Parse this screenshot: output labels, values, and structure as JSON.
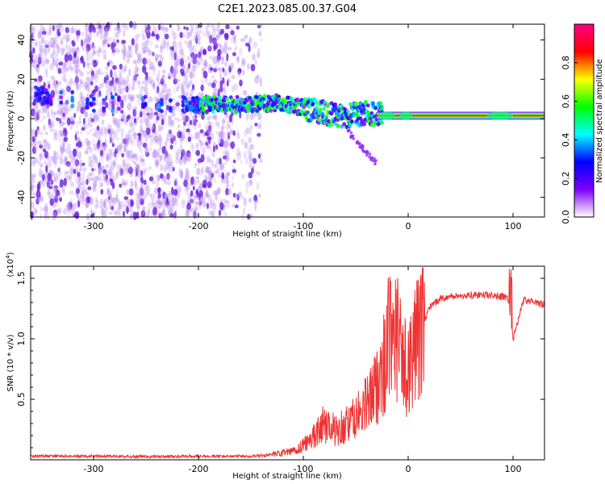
{
  "title": "C2E1.2023.085.00.37.G04",
  "chart_data": [
    {
      "type": "heatmap",
      "xlabel": "Height of straight line (km)",
      "ylabel": "Frequency (Hz)",
      "xlim": [
        -360,
        130
      ],
      "ylim": [
        -50,
        48
      ],
      "x_ticks": [
        -300,
        -200,
        -100,
        0,
        100
      ],
      "y_ticks": [
        -40,
        -20,
        0,
        20,
        40
      ],
      "colorbar": {
        "label": "Normalized spectral amplitude",
        "range": [
          0,
          1
        ],
        "ticks": [
          "0.0",
          "0.2",
          "0.4",
          "0.6",
          "0.8"
        ],
        "colormap": [
          "#ffffff",
          "#7f00ff",
          "#0000ff",
          "#00ffff",
          "#00ff00",
          "#ffff00",
          "#ff0000",
          "#ff0088"
        ]
      },
      "features": [
        {
          "name": "broadband noise",
          "x_range": [
            -360,
            -140
          ],
          "y_range": [
            -50,
            48
          ],
          "amplitude": 0.05
        },
        {
          "name": "doppler track",
          "points": [
            [
              -350,
              12
            ],
            [
              -300,
              8
            ],
            [
              -210,
              7
            ],
            [
              -160,
              7
            ],
            [
              -120,
              8
            ],
            [
              -80,
              3
            ],
            [
              -60,
              1
            ],
            [
              -40,
              3
            ],
            [
              -20,
              2
            ],
            [
              0,
              2
            ],
            [
              50,
              1
            ],
            [
              100,
              1
            ],
            [
              130,
              1
            ]
          ],
          "amplitude": 0.55
        },
        {
          "name": "carrier line",
          "x_range": [
            -30,
            130
          ],
          "y": 1.5,
          "amplitude": 0.9
        }
      ]
    },
    {
      "type": "line",
      "xlabel": "Height of straight line (km)",
      "ylabel": "SNR (10 * v/v)",
      "y_multiplier": "(x10",
      "y_multiplier_exp": "4",
      "xlim": [
        -360,
        130
      ],
      "ylim": [
        0,
        1.6
      ],
      "x_ticks": [
        -300,
        -200,
        -100,
        0,
        100
      ],
      "y_ticks": [
        "0.5",
        "1.0",
        "1.5"
      ],
      "color": "#ee3333",
      "x": [
        -360,
        -300,
        -250,
        -200,
        -150,
        -130,
        -110,
        -100,
        -90,
        -80,
        -70,
        -60,
        -50,
        -40,
        -30,
        -25,
        -20,
        -15,
        -10,
        -5,
        0,
        5,
        10,
        15,
        20,
        30,
        40,
        60,
        80,
        90,
        95,
        100,
        110,
        130
      ],
      "y": [
        0.03,
        0.03,
        0.025,
        0.03,
        0.03,
        0.04,
        0.07,
        0.12,
        0.2,
        0.3,
        0.25,
        0.28,
        0.35,
        0.45,
        0.6,
        0.78,
        0.85,
        0.95,
        1.0,
        0.75,
        0.8,
        0.9,
        1.0,
        1.15,
        1.25,
        1.33,
        1.35,
        1.36,
        1.36,
        1.35,
        1.34,
        1.0,
        1.32,
        1.28
      ]
    }
  ]
}
